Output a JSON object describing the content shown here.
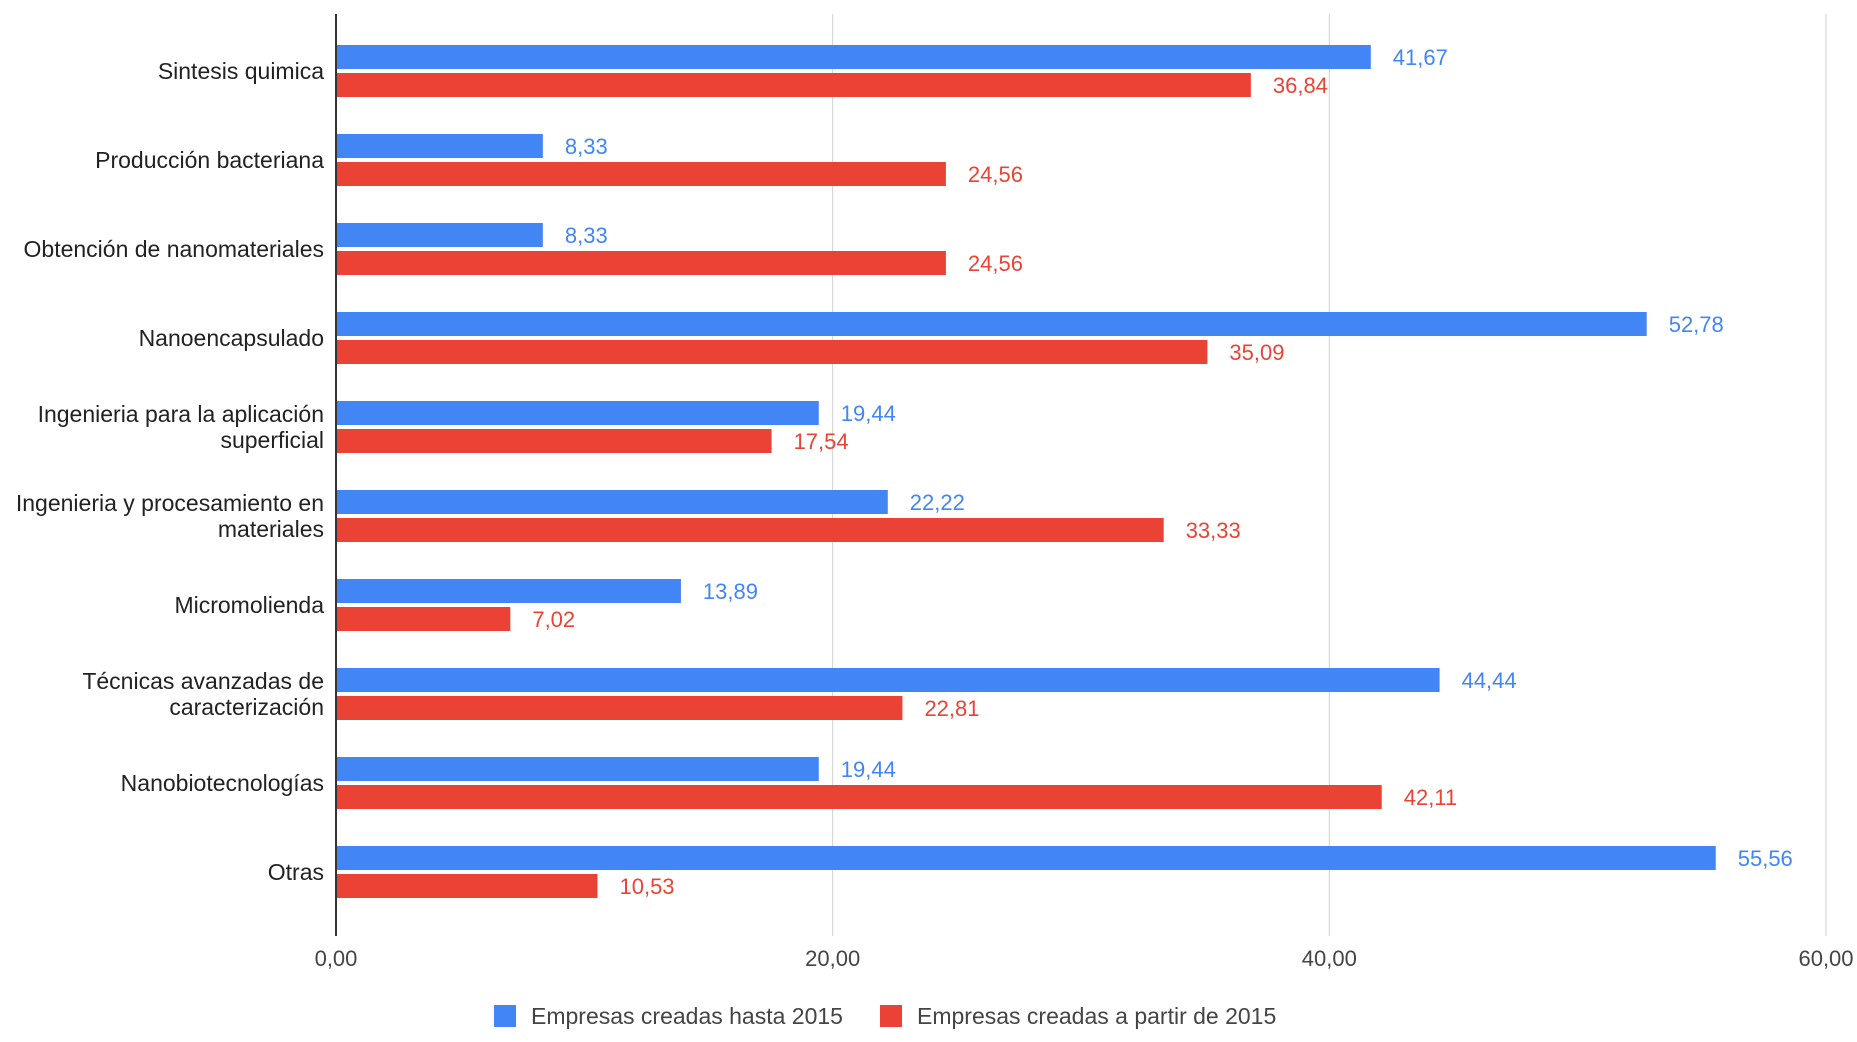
{
  "chart_data": {
    "type": "bar",
    "orientation": "horizontal",
    "title": "",
    "xlabel": "",
    "ylabel": "",
    "xlim": [
      0,
      60
    ],
    "x_ticks": [
      0,
      20,
      40,
      60
    ],
    "x_tick_labels": [
      "0,00",
      "20,00",
      "40,00",
      "60,00"
    ],
    "grid": true,
    "legend_position": "bottom",
    "categories": [
      [
        "Sintesis quimica"
      ],
      [
        "Producción bacteriana"
      ],
      [
        "Obtención de nanomateriales"
      ],
      [
        "Nanoencapsulado"
      ],
      [
        "Ingenieria para la aplicación",
        "superficial"
      ],
      [
        "Ingenieria y procesamiento en",
        "materiales"
      ],
      [
        "Micromolienda"
      ],
      [
        "Técnicas avanzadas de",
        "caracterización"
      ],
      [
        "Nanobiotecnologías"
      ],
      [
        "Otras"
      ]
    ],
    "series": [
      {
        "name": "Empresas creadas hasta 2015",
        "color": "#4285F4",
        "values": [
          41.67,
          8.33,
          8.33,
          52.78,
          19.44,
          22.22,
          13.89,
          44.44,
          19.44,
          55.56
        ],
        "labels": [
          "41,67",
          "8,33",
          "8,33",
          "52,78",
          "19,44",
          "22,22",
          "13,89",
          "44,44",
          "19,44",
          "55,56"
        ]
      },
      {
        "name": "Empresas creadas a partir de 2015",
        "color": "#EA4335",
        "values": [
          36.84,
          24.56,
          24.56,
          35.09,
          17.54,
          33.33,
          7.02,
          22.81,
          42.11,
          10.53
        ],
        "labels": [
          "36,84",
          "24,56",
          "24,56",
          "35,09",
          "17,54",
          "33,33",
          "7,02",
          "22,81",
          "42,11",
          "10,53"
        ]
      }
    ]
  }
}
